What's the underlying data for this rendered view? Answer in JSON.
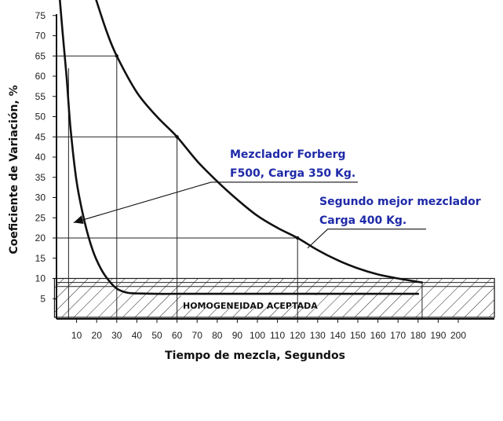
{
  "chart_data": {
    "type": "line",
    "title": "",
    "xlabel": "Tiempo de mezcla, Segundos",
    "ylabel": "Coeficiente de Variación, %",
    "xlim": [
      0,
      215
    ],
    "ylim": [
      0,
      80
    ],
    "xticks": [
      10,
      20,
      30,
      40,
      50,
      60,
      70,
      80,
      90,
      100,
      110,
      120,
      130,
      140,
      150,
      160,
      170,
      180,
      190,
      200
    ],
    "yticks": [
      5,
      10,
      15,
      20,
      25,
      30,
      35,
      40,
      45,
      50,
      55,
      60,
      65,
      70,
      75
    ],
    "grid": false,
    "legend": "none",
    "series": [
      {
        "name": "Mezclador Forberg F500, Carga 350 Kg.",
        "x": [
          1.5,
          3,
          5,
          7,
          10,
          14,
          18,
          22,
          26,
          30,
          35,
          40,
          50,
          60,
          80,
          100,
          120,
          140,
          160,
          180
        ],
        "y": [
          80,
          71,
          60,
          47,
          34,
          24,
          17,
          12.5,
          9.5,
          7.5,
          6.5,
          6.3,
          6.2,
          6.2,
          6.2,
          6.2,
          6.2,
          6.2,
          6.2,
          6.2
        ]
      },
      {
        "name": "Segundo mejor mezclador Carga 400 Kg.",
        "x": [
          19,
          25,
          30,
          40,
          50,
          60,
          70,
          80,
          90,
          100,
          110,
          120,
          130,
          140,
          150,
          160,
          170,
          182
        ],
        "y": [
          80,
          71,
          65,
          56,
          50,
          45,
          39,
          34,
          29.5,
          25.5,
          22.5,
          20,
          17,
          14.5,
          12.5,
          11,
          10,
          9
        ]
      }
    ],
    "reference_points": [
      {
        "x": 30,
        "y": 65
      },
      {
        "x": 60,
        "y": 45
      },
      {
        "x": 120,
        "y": 20
      }
    ],
    "acceptance_band": {
      "y_min": 0,
      "y_max": 10,
      "label": "HOMOGENEIDAD ACEPTADA"
    },
    "annotations": [
      {
        "lines": [
          "Mezclador Forberg",
          "F500, Carga 350 Kg."
        ],
        "color": "#1f2aa8"
      },
      {
        "lines": [
          "Segundo mejor mezclador",
          "Carga 400 Kg."
        ],
        "color": "#1f2aa8"
      }
    ]
  }
}
